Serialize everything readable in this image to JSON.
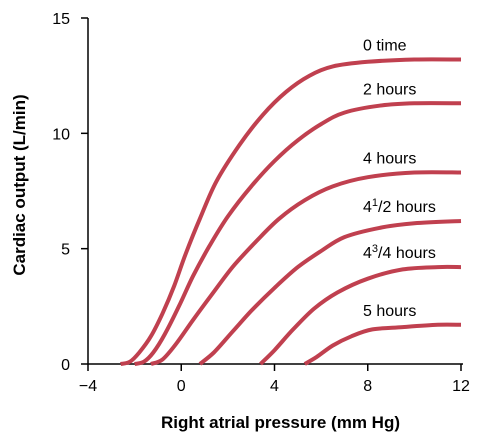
{
  "chart_data": {
    "type": "line",
    "xlabel": "Right atrial pressure (mm Hg)",
    "ylabel": "Cardiac output (L/min)",
    "xlim": [
      -4,
      12
    ],
    "ylim": [
      0,
      15
    ],
    "xticks": [
      "−4",
      "0",
      "4",
      "8",
      "12"
    ],
    "yticks": [
      "0",
      "5",
      "10",
      "15"
    ],
    "grid": false,
    "line_color": "#c0404f",
    "series": [
      {
        "label_parts": [
          "0 time"
        ],
        "points": [
          [
            -2.6,
            0
          ],
          [
            -2.2,
            0.1
          ],
          [
            -1.8,
            0.5
          ],
          [
            -1.3,
            1.2
          ],
          [
            -0.8,
            2.2
          ],
          [
            -0.3,
            3.4
          ],
          [
            0.2,
            4.8
          ],
          [
            0.8,
            6.3
          ],
          [
            1.5,
            7.9
          ],
          [
            2.5,
            9.5
          ],
          [
            3.5,
            10.8
          ],
          [
            4.5,
            11.8
          ],
          [
            5.5,
            12.5
          ],
          [
            6.5,
            12.9
          ],
          [
            8,
            13.1
          ],
          [
            10,
            13.2
          ],
          [
            12,
            13.2
          ]
        ]
      },
      {
        "label_parts": [
          "2 hours"
        ],
        "points": [
          [
            -2.0,
            0
          ],
          [
            -1.6,
            0.1
          ],
          [
            -1.2,
            0.5
          ],
          [
            -0.7,
            1.3
          ],
          [
            -0.1,
            2.5
          ],
          [
            0.5,
            3.8
          ],
          [
            1.2,
            5.1
          ],
          [
            2.0,
            6.4
          ],
          [
            3.0,
            7.7
          ],
          [
            4.0,
            8.8
          ],
          [
            5.0,
            9.7
          ],
          [
            6.0,
            10.4
          ],
          [
            7.0,
            10.9
          ],
          [
            8.5,
            11.2
          ],
          [
            10,
            11.3
          ],
          [
            12,
            11.3
          ]
        ]
      },
      {
        "label_parts": [
          "4 hours"
        ],
        "points": [
          [
            -1.3,
            0
          ],
          [
            -0.8,
            0.2
          ],
          [
            -0.2,
            0.9
          ],
          [
            0.5,
            1.9
          ],
          [
            1.3,
            3.0
          ],
          [
            2.2,
            4.2
          ],
          [
            3.2,
            5.3
          ],
          [
            4.2,
            6.3
          ],
          [
            5.3,
            7.1
          ],
          [
            6.5,
            7.7
          ],
          [
            8,
            8.1
          ],
          [
            10,
            8.3
          ],
          [
            12,
            8.3
          ]
        ]
      },
      {
        "label_parts": [
          "4",
          "1",
          "/2 hours"
        ],
        "points": [
          [
            0.8,
            0
          ],
          [
            1.4,
            0.5
          ],
          [
            2.2,
            1.4
          ],
          [
            3.0,
            2.3
          ],
          [
            4.0,
            3.3
          ],
          [
            5.0,
            4.2
          ],
          [
            6.0,
            4.9
          ],
          [
            7.0,
            5.5
          ],
          [
            8.5,
            5.9
          ],
          [
            10,
            6.1
          ],
          [
            12,
            6.2
          ]
        ]
      },
      {
        "label_parts": [
          "4",
          "3",
          "/4 hours"
        ],
        "points": [
          [
            3.4,
            0
          ],
          [
            4.0,
            0.6
          ],
          [
            4.8,
            1.5
          ],
          [
            5.7,
            2.4
          ],
          [
            6.7,
            3.1
          ],
          [
            8.0,
            3.7
          ],
          [
            9.5,
            4.1
          ],
          [
            11,
            4.2
          ],
          [
            12,
            4.2
          ]
        ]
      },
      {
        "label_parts": [
          "5 hours"
        ],
        "points": [
          [
            5.3,
            0
          ],
          [
            5.8,
            0.3
          ],
          [
            6.5,
            0.8
          ],
          [
            7.3,
            1.2
          ],
          [
            8.2,
            1.5
          ],
          [
            9.5,
            1.6
          ],
          [
            11,
            1.7
          ],
          [
            12,
            1.7
          ]
        ]
      }
    ]
  }
}
